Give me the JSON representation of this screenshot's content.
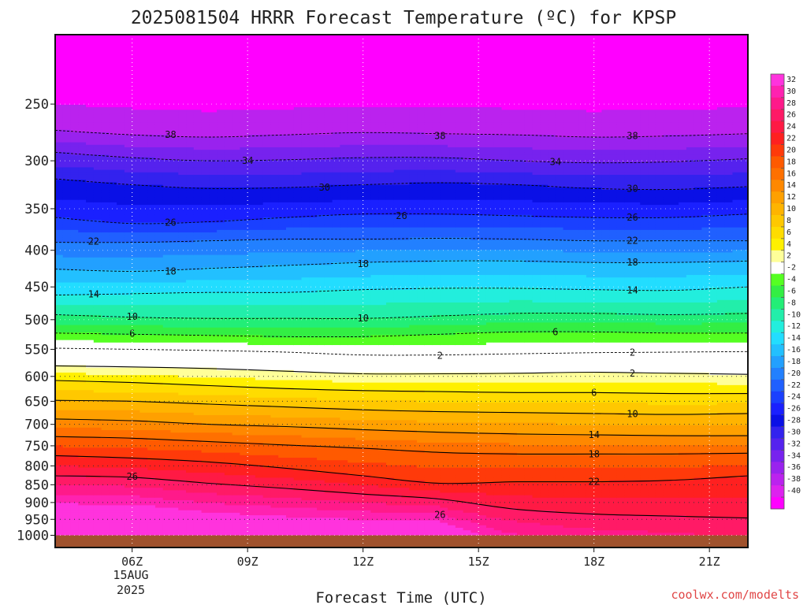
{
  "chart_data": {
    "type": "heatmap",
    "title": "2025081504 HRRR Forecast Temperature (ºC) for KPSP",
    "xlabel": "Forecast Time (UTC)",
    "ylabel": "",
    "x_ticks": [
      "06Z",
      "09Z",
      "12Z",
      "15Z",
      "18Z",
      "21Z"
    ],
    "x_date_label": [
      "15AUG",
      "2025"
    ],
    "x_hours_range": [
      4,
      22
    ],
    "y_scale": "log",
    "y_ticks": [
      250,
      300,
      350,
      400,
      450,
      500,
      550,
      600,
      650,
      700,
      750,
      800,
      850,
      900,
      950,
      1000
    ],
    "y_range_hPa": [
      200,
      1040
    ],
    "terrain_top_hPa": 1000,
    "terrain_color": "#a0522d",
    "colorbar": {
      "labels": [
        32,
        30,
        28,
        26,
        24,
        22,
        20,
        18,
        16,
        14,
        12,
        10,
        8,
        6,
        4,
        2,
        -2,
        -4,
        -6,
        -8,
        -10,
        -12,
        -14,
        -16,
        -18,
        -20,
        -22,
        -24,
        -26,
        -28,
        -30,
        -32,
        -34,
        -36,
        -38,
        -40
      ],
      "colors": [
        "#ff33dd",
        "#ff22b0",
        "#ff1a8a",
        "#ff1a66",
        "#ff1a44",
        "#ff2020",
        "#ff3a0a",
        "#ff5a00",
        "#ff7000",
        "#ff8800",
        "#ffa000",
        "#ffb400",
        "#ffc800",
        "#ffdc00",
        "#fff000",
        "#ffff99",
        "#ffffff",
        "#55ff22",
        "#33ee44",
        "#22ee77",
        "#22eeaa",
        "#22eedd",
        "#22ddff",
        "#22c0ff",
        "#22a0ff",
        "#2280ff",
        "#2060ff",
        "#1a40ff",
        "#1a20ff",
        "#0a10e6",
        "#3322ee",
        "#5522ee",
        "#7722ee",
        "#9922ee",
        "#bb22ee",
        "#dd22ee",
        "#ff00ff"
      ]
    },
    "isotherms": [
      {
        "value": -38,
        "line": "dashed",
        "p": [
          272,
          276,
          278,
          276,
          274,
          275,
          276,
          278,
          277,
          275
        ]
      },
      {
        "value": -34,
        "line": "dashed",
        "p": [
          292,
          297,
          300,
          299,
          297,
          297,
          300,
          302,
          301,
          298
        ]
      },
      {
        "value": -30,
        "line": "dashed",
        "p": [
          318,
          324,
          328,
          327,
          324,
          322,
          324,
          328,
          329,
          326
        ]
      },
      {
        "value": -26,
        "line": "dashed",
        "p": [
          360,
          367,
          365,
          360,
          356,
          356,
          358,
          360,
          360,
          356
        ]
      },
      {
        "value": -22,
        "line": "dashed",
        "p": [
          390,
          390,
          388,
          386,
          386,
          385,
          386,
          388,
          388,
          388
        ]
      },
      {
        "value": -18,
        "line": "dashed",
        "p": [
          425,
          428,
          424,
          420,
          416,
          414,
          414,
          416,
          416,
          414
        ]
      },
      {
        "value": -14,
        "line": "dashed",
        "p": [
          462,
          460,
          458,
          458,
          454,
          452,
          452,
          454,
          455,
          450
        ]
      },
      {
        "value": -10,
        "line": "dashed",
        "p": [
          492,
          496,
          498,
          498,
          498,
          494,
          490,
          490,
          492,
          490
        ]
      },
      {
        "value": -6,
        "line": "dashed",
        "p": [
          522,
          524,
          526,
          528,
          528,
          524,
          520,
          520,
          522,
          522
        ]
      },
      {
        "value": -2,
        "line": "dashed",
        "p": [
          548,
          550,
          552,
          555,
          560,
          560,
          558,
          556,
          555,
          554
        ]
      },
      {
        "value": 2,
        "line": "solid",
        "p": [
          580,
          582,
          585,
          590,
          595,
          595,
          594,
          592,
          594,
          596
        ]
      },
      {
        "value": 6,
        "line": "solid",
        "p": [
          608,
          612,
          618,
          624,
          628,
          630,
          632,
          632,
          634,
          634
        ]
      },
      {
        "value": 10,
        "line": "solid",
        "p": [
          648,
          650,
          656,
          662,
          668,
          672,
          674,
          676,
          678,
          676
        ]
      },
      {
        "value": 14,
        "line": "solid",
        "p": [
          688,
          692,
          700,
          705,
          712,
          718,
          722,
          724,
          726,
          726
        ]
      },
      {
        "value": 18,
        "line": "solid",
        "p": [
          728,
          732,
          740,
          748,
          756,
          766,
          770,
          770,
          770,
          768
        ]
      },
      {
        "value": 22,
        "line": "solid",
        "p": [
          774,
          780,
          790,
          806,
          826,
          846,
          842,
          842,
          838,
          826
        ]
      },
      {
        "value": 26,
        "line": "solid",
        "p": [
          826,
          830,
          846,
          860,
          876,
          890,
          920,
          934,
          940,
          946
        ]
      }
    ],
    "contour_labels": [
      {
        "text": "38",
        "hour": 7.0,
        "p": 276
      },
      {
        "text": "38",
        "hour": 14.0,
        "p": 277
      },
      {
        "text": "38",
        "hour": 19.0,
        "p": 277
      },
      {
        "text": "34",
        "hour": 9.0,
        "p": 300
      },
      {
        "text": "34",
        "hour": 17.0,
        "p": 301
      },
      {
        "text": "30",
        "hour": 11.0,
        "p": 327
      },
      {
        "text": "30",
        "hour": 19.0,
        "p": 328
      },
      {
        "text": "26",
        "hour": 7.0,
        "p": 366
      },
      {
        "text": "26",
        "hour": 13.0,
        "p": 358
      },
      {
        "text": "26",
        "hour": 19.0,
        "p": 360
      },
      {
        "text": "22",
        "hour": 5.0,
        "p": 389
      },
      {
        "text": "22",
        "hour": 19.0,
        "p": 388
      },
      {
        "text": "18",
        "hour": 7.0,
        "p": 428
      },
      {
        "text": "18",
        "hour": 12.0,
        "p": 418
      },
      {
        "text": "18",
        "hour": 19.0,
        "p": 416
      },
      {
        "text": "14",
        "hour": 5.0,
        "p": 461
      },
      {
        "text": "14",
        "hour": 19.0,
        "p": 455
      },
      {
        "text": "10",
        "hour": 6.0,
        "p": 495
      },
      {
        "text": "10",
        "hour": 12.0,
        "p": 498
      },
      {
        "text": "6",
        "hour": 6.0,
        "p": 523
      },
      {
        "text": "6",
        "hour": 17.0,
        "p": 520
      },
      {
        "text": "2",
        "hour": 14.0,
        "p": 561
      },
      {
        "text": "2",
        "hour": 19.0,
        "p": 556
      },
      {
        "text": "2",
        "hour": 19.0,
        "p": 594
      },
      {
        "text": "6",
        "hour": 18.0,
        "p": 632
      },
      {
        "text": "10",
        "hour": 19.0,
        "p": 677
      },
      {
        "text": "14",
        "hour": 18.0,
        "p": 724
      },
      {
        "text": "18",
        "hour": 18.0,
        "p": 770
      },
      {
        "text": "22",
        "hour": 18.0,
        "p": 842
      },
      {
        "text": "26",
        "hour": 6.0,
        "p": 828
      },
      {
        "text": "26",
        "hour": 14.0,
        "p": 936
      }
    ],
    "credit": "coolwx.com/modelts"
  }
}
